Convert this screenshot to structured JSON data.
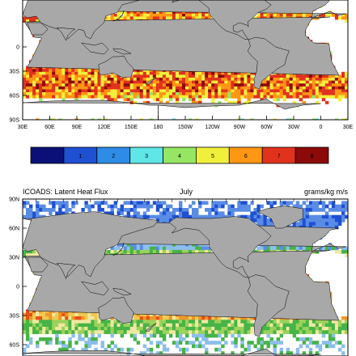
{
  "chart_data": [
    {
      "type": "heatmap",
      "title": "",
      "lon_labels": [
        "30E",
        "60E",
        "90E",
        "120E",
        "150E",
        "180",
        "150W",
        "120W",
        "90W",
        "60W",
        "30W",
        "0",
        "30E"
      ],
      "lat_labels": [
        "0",
        "30S",
        "60S",
        "90S"
      ],
      "colorbar": {
        "levels": [
          "1",
          "2",
          "3",
          "4",
          "5",
          "6",
          "7",
          "8"
        ],
        "colors": [
          "#0a1078",
          "#1e50d2",
          "#2d8ce6",
          "#5fe6e6",
          "#96e664",
          "#f0f03c",
          "#ff9614",
          "#e1321e",
          "#8c0a0a"
        ]
      }
    },
    {
      "type": "heatmap",
      "title": "ICOADS: Latent Heat Flux",
      "center_title": "July",
      "units": "grams/kg m/s",
      "lat_labels": [
        "90N",
        "60N",
        "30N",
        "0",
        "30S",
        "60S"
      ]
    }
  ],
  "colors": {
    "land": "#a8a8a8",
    "missing": "#ffffff"
  }
}
